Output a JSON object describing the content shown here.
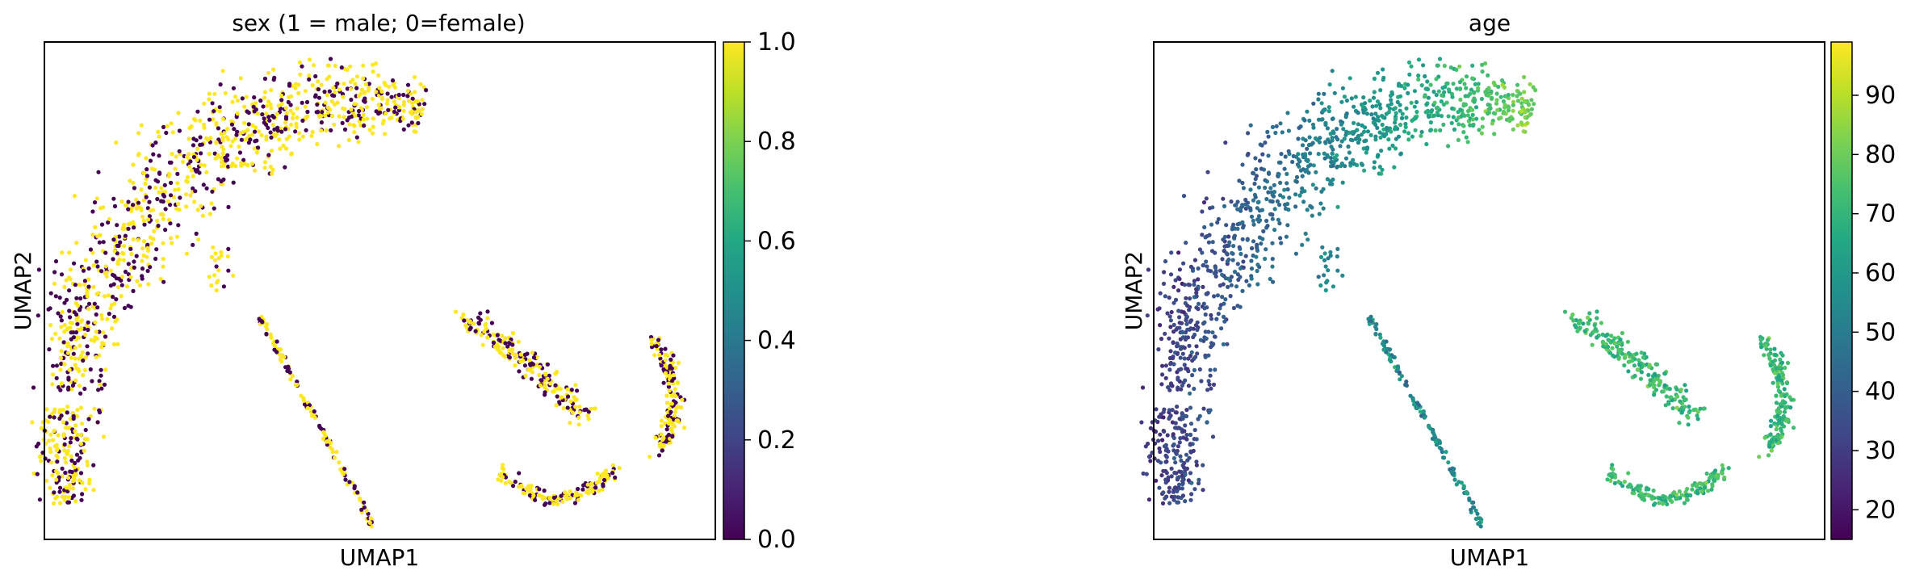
{
  "chart_data": [
    {
      "type": "scatter",
      "title": "sex (1 = male; 0=female)",
      "xlabel": "UMAP1",
      "ylabel": "UMAP2",
      "colorbar": {
        "colormap": "viridis",
        "range": [
          0.0,
          1.0
        ],
        "ticks": [
          0.0,
          0.2,
          0.4,
          0.6,
          0.8,
          1.0
        ],
        "tick_labels": [
          "0.0",
          "0.2",
          "0.4",
          "0.6",
          "0.8",
          "1.0"
        ]
      },
      "categories": [
        {
          "value": 1,
          "color": "#fde725",
          "share": 0.6
        },
        {
          "value": 0,
          "color": "#440154",
          "share": 0.4
        }
      ],
      "grid": false
    },
    {
      "type": "scatter",
      "title": "age",
      "xlabel": "UMAP1",
      "ylabel": "UMAP2",
      "colorbar": {
        "colormap": "viridis",
        "range": [
          15,
          99
        ],
        "ticks": [
          20,
          30,
          40,
          50,
          60,
          70,
          80,
          90
        ],
        "tick_labels": [
          "20",
          "30",
          "40",
          "50",
          "60",
          "70",
          "80",
          "90"
        ]
      },
      "grid": false
    }
  ]
}
